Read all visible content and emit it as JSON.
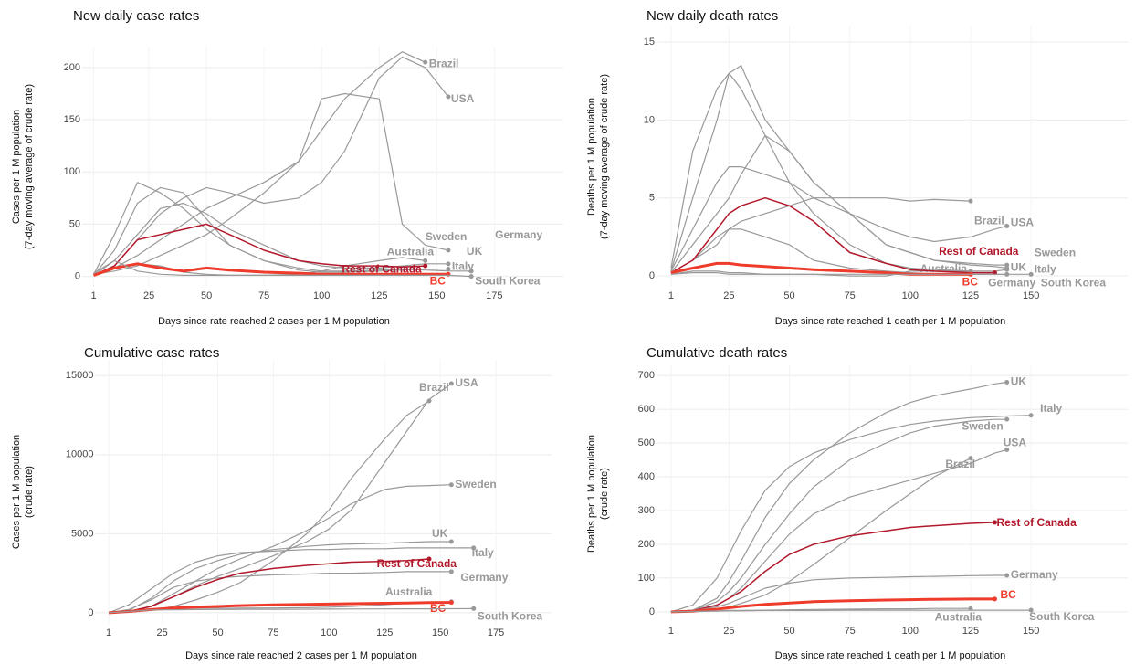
{
  "chart_data": [
    {
      "type": "line",
      "title": "New daily case rates",
      "xlabel": "Days since rate reached 2 cases per 1 M population",
      "ylabel": [
        "Cases per 1 M population",
        "(7-day moving average of crude rate)"
      ],
      "x": [
        1,
        10,
        20,
        30,
        40,
        50,
        60,
        75,
        90,
        100,
        110,
        125,
        135,
        145,
        155,
        165
      ],
      "xlim": [
        -4,
        205
      ],
      "ylim": [
        -10,
        220
      ],
      "xticks": [
        1,
        25,
        50,
        75,
        100,
        125,
        150,
        175
      ],
      "yticks": [
        0,
        50,
        100,
        150,
        200
      ],
      "grid": true,
      "series": [
        {
          "name": "Brazil",
          "color": "#999999",
          "linewidth": 1.2,
          "values": [
            2,
            5,
            10,
            20,
            30,
            40,
            55,
            80,
            110,
            140,
            170,
            200,
            215,
            205,
            null,
            null
          ]
        },
        {
          "name": "USA",
          "color": "#999999",
          "linewidth": 1.2,
          "values": [
            1,
            10,
            35,
            60,
            75,
            85,
            80,
            70,
            75,
            90,
            120,
            190,
            210,
            200,
            172,
            null
          ]
        },
        {
          "name": "Sweden",
          "color": "#999999",
          "linewidth": 1.2,
          "values": [
            1,
            8,
            20,
            35,
            50,
            65,
            75,
            90,
            110,
            170,
            175,
            170,
            50,
            30,
            25,
            null
          ]
        },
        {
          "name": "Germany",
          "color": "#999999",
          "linewidth": 1.2,
          "values": [
            1,
            25,
            70,
            85,
            80,
            55,
            30,
            15,
            8,
            5,
            5,
            6,
            7,
            6,
            5,
            5
          ]
        },
        {
          "name": "UK",
          "color": "#999999",
          "linewidth": 1.2,
          "values": [
            1,
            15,
            40,
            65,
            70,
            60,
            45,
            30,
            15,
            10,
            8,
            8,
            10,
            12,
            12,
            null
          ]
        },
        {
          "name": "Australia",
          "color": "#999999",
          "linewidth": 1.2,
          "values": [
            1,
            8,
            12,
            10,
            4,
            2,
            1,
            1,
            2,
            5,
            10,
            15,
            18,
            15,
            null,
            null
          ]
        },
        {
          "name": "Italy",
          "color": "#999999",
          "linewidth": 1.2,
          "values": [
            2,
            40,
            90,
            80,
            65,
            45,
            30,
            15,
            6,
            4,
            4,
            5,
            6,
            7,
            7,
            null
          ]
        },
        {
          "name": "Rest of Canada",
          "color": "#b2182b",
          "linewidth": 1.5,
          "values": [
            1,
            10,
            35,
            40,
            45,
            50,
            40,
            25,
            15,
            12,
            10,
            10,
            9,
            10,
            null,
            null
          ]
        },
        {
          "name": "BC",
          "color": "#ef3b2c",
          "linewidth": 3,
          "values": [
            1,
            8,
            12,
            8,
            5,
            8,
            6,
            4,
            3,
            2,
            2,
            2,
            2,
            2,
            2,
            null
          ]
        },
        {
          "name": "South Korea",
          "color": "#999999",
          "linewidth": 1.2,
          "values": [
            3,
            15,
            5,
            2,
            1,
            1,
            1,
            1,
            1,
            1,
            1,
            1,
            1,
            1,
            1,
            0
          ]
        }
      ]
    },
    {
      "type": "line",
      "title": "New daily death rates",
      "xlabel": "Days since rate reached 1 death per 1 M population",
      "ylabel": [
        "Deaths per 1 M population",
        "(7-day moving average of crude rate)"
      ],
      "x": [
        1,
        10,
        20,
        25,
        30,
        40,
        50,
        60,
        75,
        90,
        100,
        110,
        125,
        135,
        140,
        150
      ],
      "xlim": [
        -5,
        190
      ],
      "ylim": [
        -0.7,
        16
      ],
      "xticks": [
        1,
        25,
        50,
        75,
        100,
        125,
        150
      ],
      "yticks": [
        0,
        5,
        10,
        15
      ],
      "grid": true,
      "series": [
        {
          "name": "Brazil",
          "color": "#999999",
          "linewidth": 1.2,
          "values": [
            0.2,
            1,
            2.5,
            3,
            3.5,
            4,
            4.5,
            5,
            5,
            5,
            4.8,
            4.9,
            4.8,
            null,
            null,
            null
          ]
        },
        {
          "name": "USA",
          "color": "#999999",
          "linewidth": 1.2,
          "values": [
            0.3,
            3,
            6,
            7,
            7,
            6.5,
            6,
            5,
            4,
            3,
            2.5,
            2.2,
            2.5,
            3,
            3.2,
            null
          ]
        },
        {
          "name": "Sweden",
          "color": "#999999",
          "linewidth": 1.2,
          "values": [
            0.2,
            2,
            4,
            5,
            6.5,
            9,
            8,
            6,
            4,
            2,
            1.5,
            1,
            0.8,
            0.7,
            0.7,
            null
          ]
        },
        {
          "name": "Germany",
          "color": "#999999",
          "linewidth": 1.2,
          "values": [
            0.2,
            1,
            2,
            3,
            3,
            2.5,
            2,
            1,
            0.5,
            0.3,
            0.2,
            0.1,
            0.1,
            0.1,
            0.1,
            0.1
          ]
        },
        {
          "name": "UK",
          "color": "#999999",
          "linewidth": 1.2,
          "values": [
            0.3,
            5,
            10,
            13,
            13.5,
            10,
            8,
            6,
            4,
            2,
            1.5,
            1,
            0.7,
            0.6,
            0.5,
            null
          ]
        },
        {
          "name": "Australia",
          "color": "#999999",
          "linewidth": 1.2,
          "values": [
            0.1,
            0.3,
            0.3,
            0.2,
            0.2,
            0.1,
            0.1,
            0.1,
            0,
            0,
            0.3,
            0.3,
            0.3,
            null,
            null,
            null
          ]
        },
        {
          "name": "Italy",
          "color": "#999999",
          "linewidth": 1.2,
          "values": [
            0.5,
            8,
            12,
            13,
            12,
            9,
            6,
            4,
            2,
            0.8,
            0.5,
            0.4,
            0.3,
            0.3,
            0.4,
            null
          ]
        },
        {
          "name": "Rest of Canada",
          "color": "#b2182b",
          "linewidth": 1.5,
          "values": [
            0.2,
            1,
            3,
            4,
            4.5,
            5,
            4.5,
            3.5,
            1.5,
            0.8,
            0.4,
            0.3,
            0.2,
            0.2,
            null,
            null
          ]
        },
        {
          "name": "BC",
          "color": "#ef3b2c",
          "linewidth": 3,
          "values": [
            0.2,
            0.5,
            0.8,
            0.8,
            0.7,
            0.6,
            0.5,
            0.4,
            0.3,
            0.2,
            0.1,
            0.1,
            0.1,
            null,
            null,
            null
          ]
        },
        {
          "name": "South Korea",
          "color": "#999999",
          "linewidth": 1.2,
          "values": [
            0.1,
            0.2,
            0.2,
            0.1,
            0.1,
            0.1,
            0.1,
            0.1,
            0.1,
            0.1,
            0.1,
            0.1,
            0.1,
            0.1,
            0.1,
            null
          ]
        }
      ]
    },
    {
      "type": "line",
      "title": "Cumulative case rates",
      "xlabel": "Days since rate reached 2 cases per 1 M population",
      "ylabel": [
        "Cases per 1 M population",
        "(crude rate)"
      ],
      "x": [
        1,
        10,
        20,
        30,
        40,
        50,
        60,
        75,
        90,
        100,
        110,
        125,
        135,
        145,
        155,
        165
      ],
      "xlim": [
        -5,
        200
      ],
      "ylim": [
        -700,
        16000
      ],
      "xticks": [
        1,
        25,
        50,
        75,
        100,
        125,
        150,
        175
      ],
      "yticks": [
        0,
        5000,
        10000,
        15000
      ],
      "grid": true,
      "series": [
        {
          "name": "USA",
          "color": "#999999",
          "linewidth": 1.2,
          "values": [
            0,
            100,
            400,
            1000,
            1700,
            2300,
            2800,
            3600,
            4500,
            5300,
            6500,
            9500,
            11500,
            13500,
            14500,
            null
          ]
        },
        {
          "name": "Brazil",
          "color": "#999999",
          "linewidth": 1.2,
          "values": [
            0,
            50,
            150,
            400,
            800,
            1300,
            1900,
            3300,
            5000,
            6500,
            8500,
            11000,
            12500,
            13400,
            null,
            null
          ]
        },
        {
          "name": "Sweden",
          "color": "#999999",
          "linewidth": 1.2,
          "values": [
            0,
            80,
            400,
            1200,
            2000,
            2800,
            3400,
            4200,
            5200,
            6000,
            6900,
            7800,
            8000,
            8050,
            8100,
            null
          ]
        },
        {
          "name": "UK",
          "color": "#999999",
          "linewidth": 1.2,
          "values": [
            0,
            150,
            900,
            2000,
            2800,
            3300,
            3700,
            4000,
            4200,
            4300,
            4350,
            4400,
            4450,
            4500,
            4500,
            null
          ]
        },
        {
          "name": "Italy",
          "color": "#999999",
          "linewidth": 1.2,
          "values": [
            0,
            500,
            1500,
            2500,
            3200,
            3600,
            3800,
            3900,
            4000,
            4000,
            4050,
            4050,
            4100,
            4100,
            4100,
            4100
          ]
        },
        {
          "name": "Germany",
          "color": "#999999",
          "linewidth": 1.2,
          "values": [
            0,
            200,
            800,
            1600,
            2000,
            2200,
            2300,
            2400,
            2450,
            2500,
            2500,
            2550,
            2600,
            2600,
            2600,
            null
          ]
        },
        {
          "name": "Rest of Canada",
          "color": "#b2182b",
          "linewidth": 1.5,
          "values": [
            0,
            80,
            400,
            1000,
            1600,
            2100,
            2500,
            2800,
            3000,
            3100,
            3200,
            3250,
            3300,
            3400,
            null,
            null
          ]
        },
        {
          "name": "Australia",
          "color": "#999999",
          "linewidth": 1.2,
          "values": [
            0,
            50,
            200,
            250,
            280,
            280,
            290,
            300,
            320,
            350,
            400,
            500,
            600,
            650,
            700,
            null
          ]
        },
        {
          "name": "BC",
          "color": "#ef3b2c",
          "linewidth": 3,
          "values": [
            0,
            80,
            200,
            300,
            350,
            400,
            450,
            500,
            530,
            550,
            570,
            600,
            620,
            640,
            650,
            null
          ]
        },
        {
          "name": "South Korea",
          "color": "#999999",
          "linewidth": 1.2,
          "values": [
            0,
            80,
            180,
            190,
            200,
            210,
            215,
            220,
            225,
            230,
            235,
            240,
            245,
            250,
            255,
            260
          ]
        }
      ]
    },
    {
      "type": "line",
      "title": "Cumulative death rates",
      "xlabel": "Days since rate reached 1 death per 1 M population",
      "ylabel": [
        "Deaths per 1 M population",
        "(crude rate)"
      ],
      "x": [
        1,
        10,
        20,
        25,
        30,
        40,
        50,
        60,
        75,
        90,
        100,
        110,
        125,
        135,
        140,
        150
      ],
      "xlim": [
        -5,
        190
      ],
      "ylim": [
        -30,
        730
      ],
      "xticks": [
        1,
        25,
        50,
        75,
        100,
        125,
        150
      ],
      "yticks": [
        0,
        100,
        200,
        300,
        400,
        500,
        600,
        700
      ],
      "grid": true,
      "series": [
        {
          "name": "UK",
          "color": "#999999",
          "linewidth": 1.2,
          "values": [
            0,
            5,
            40,
            90,
            150,
            280,
            380,
            450,
            530,
            590,
            620,
            640,
            660,
            675,
            680,
            null
          ]
        },
        {
          "name": "Italy",
          "color": "#999999",
          "linewidth": 1.2,
          "values": [
            0,
            20,
            100,
            170,
            240,
            360,
            430,
            470,
            510,
            540,
            555,
            565,
            575,
            578,
            580,
            582
          ]
        },
        {
          "name": "Sweden",
          "color": "#999999",
          "linewidth": 1.2,
          "values": [
            0,
            5,
            30,
            60,
            100,
            200,
            290,
            370,
            450,
            500,
            530,
            550,
            565,
            570,
            570,
            null
          ]
        },
        {
          "name": "USA",
          "color": "#999999",
          "linewidth": 1.2,
          "values": [
            0,
            5,
            20,
            40,
            70,
            150,
            230,
            290,
            340,
            370,
            390,
            410,
            440,
            470,
            480,
            null
          ]
        },
        {
          "name": "Brazil",
          "color": "#999999",
          "linewidth": 1.2,
          "values": [
            0,
            2,
            8,
            15,
            25,
            50,
            90,
            140,
            220,
            300,
            350,
            400,
            455,
            null,
            null,
            null
          ]
        },
        {
          "name": "Rest of Canada",
          "color": "#b2182b",
          "linewidth": 1.5,
          "values": [
            0,
            3,
            20,
            40,
            60,
            120,
            170,
            200,
            225,
            240,
            250,
            255,
            262,
            265,
            null,
            null
          ]
        },
        {
          "name": "Germany",
          "color": "#999999",
          "linewidth": 1.2,
          "values": [
            0,
            3,
            15,
            25,
            40,
            70,
            85,
            95,
            100,
            102,
            104,
            105,
            107,
            108,
            108,
            null
          ]
        },
        {
          "name": "BC",
          "color": "#ef3b2c",
          "linewidth": 3,
          "values": [
            0,
            2,
            8,
            12,
            16,
            22,
            26,
            30,
            33,
            35,
            36,
            37,
            38,
            38,
            null,
            null
          ]
        },
        {
          "name": "Australia",
          "color": "#999999",
          "linewidth": 1.2,
          "values": [
            0,
            1,
            3,
            4,
            4,
            5,
            6,
            7,
            8,
            9,
            9,
            10,
            10,
            null,
            null,
            null
          ]
        },
        {
          "name": "South Korea",
          "color": "#999999",
          "linewidth": 1.2,
          "values": [
            0,
            1,
            2,
            3,
            3,
            4,
            4,
            4,
            5,
            5,
            5,
            5,
            5,
            5,
            5,
            5
          ]
        }
      ]
    }
  ]
}
